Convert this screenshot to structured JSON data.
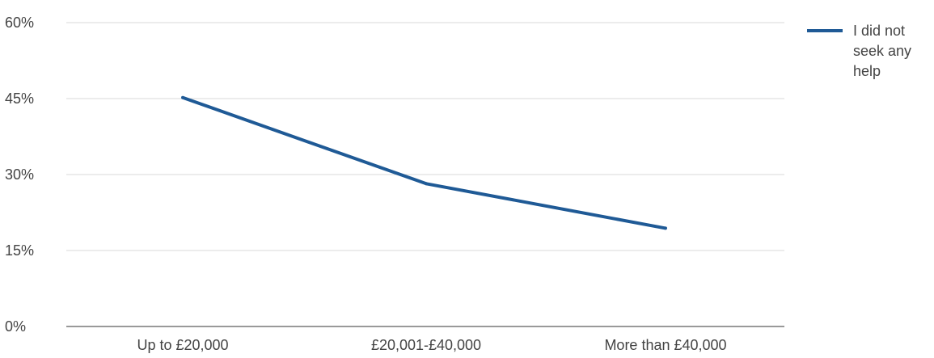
{
  "chart_data": {
    "type": "line",
    "title": "",
    "xlabel": "",
    "ylabel": "",
    "categories": [
      "Up to £20,000",
      "£20,001-£40,000",
      "More than £40,000"
    ],
    "series": [
      {
        "name": "I did not seek any help",
        "legend_lines": [
          "I did not",
          "seek any",
          "help"
        ],
        "values": [
          45.2,
          28.2,
          19.4
        ],
        "color": "#1f5a96"
      }
    ],
    "ylim": [
      0,
      60
    ],
    "yticks": [
      0,
      15,
      30,
      45,
      60
    ],
    "ytick_labels": [
      "0%",
      "15%",
      "30%",
      "45%",
      "60%"
    ],
    "grid": true,
    "legend_position": "right"
  }
}
